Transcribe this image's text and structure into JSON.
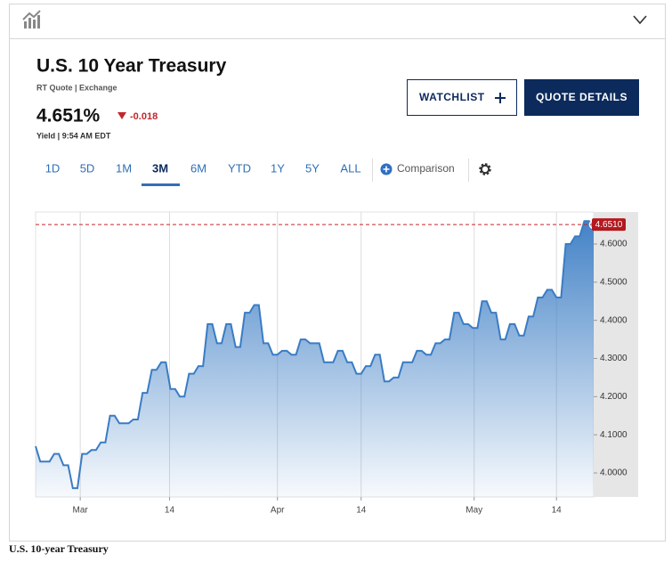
{
  "header": {
    "title": "U.S. 10 Year Treasury",
    "source": "RT Quote | Exchange",
    "price": "4.651%",
    "change": "-0.018",
    "meta": "Yield | 9:54 AM EDT"
  },
  "buttons": {
    "watchlist": "WATCHLIST",
    "quote_details": "QUOTE DETAILS"
  },
  "ranges": [
    "1D",
    "5D",
    "1M",
    "3M",
    "6M",
    "YTD",
    "1Y",
    "5Y",
    "ALL"
  ],
  "active_range": "3M",
  "comparison": "Comparison",
  "caption": "U.S. 10-year Treasury",
  "chart_data": {
    "type": "area-line",
    "series": [
      {
        "name": "U.S. 10 Year Treasury",
        "color": "#3a7cc4",
        "values": [
          4.07,
          4.03,
          4.03,
          4.03,
          4.05,
          4.05,
          4.02,
          4.02,
          3.96,
          3.96,
          4.05,
          4.05,
          4.06,
          4.06,
          4.08,
          4.08,
          4.15,
          4.15,
          4.13,
          4.13,
          4.13,
          4.14,
          4.14,
          4.21,
          4.21,
          4.27,
          4.27,
          4.29,
          4.29,
          4.22,
          4.22,
          4.2,
          4.2,
          4.26,
          4.26,
          4.28,
          4.28,
          4.39,
          4.39,
          4.34,
          4.34,
          4.39,
          4.39,
          4.33,
          4.33,
          4.42,
          4.42,
          4.44,
          4.44,
          4.34,
          4.34,
          4.31,
          4.31,
          4.32,
          4.32,
          4.31,
          4.31,
          4.35,
          4.35,
          4.34,
          4.34,
          4.34,
          4.29,
          4.29,
          4.29,
          4.32,
          4.32,
          4.29,
          4.29,
          4.26,
          4.26,
          4.28,
          4.28,
          4.31,
          4.31,
          4.24,
          4.24,
          4.25,
          4.25,
          4.29,
          4.29,
          4.29,
          4.32,
          4.32,
          4.31,
          4.31,
          4.34,
          4.34,
          4.35,
          4.35,
          4.42,
          4.42,
          4.39,
          4.39,
          4.38,
          4.38,
          4.45,
          4.45,
          4.42,
          4.42,
          4.35,
          4.35,
          4.39,
          4.39,
          4.36,
          4.36,
          4.41,
          4.41,
          4.46,
          4.46,
          4.48,
          4.48,
          4.46,
          4.46,
          4.6,
          4.6,
          4.62,
          4.62,
          4.66,
          4.66,
          4.651
        ]
      }
    ],
    "last": {
      "value": 4.651,
      "label": "4.6510"
    },
    "xlim": [
      0,
      120
    ],
    "xticks": [
      {
        "value": 9.6,
        "label": "Mar"
      },
      {
        "value": 28.8,
        "label": "14"
      },
      {
        "value": 52,
        "label": "Apr"
      },
      {
        "value": 70,
        "label": "14"
      },
      {
        "value": 94.3,
        "label": "May"
      },
      {
        "value": 112,
        "label": "14"
      }
    ],
    "ylim": [
      3.937,
      4.684
    ],
    "yticks": [
      {
        "value": 4.0,
        "label": "4.0000"
      },
      {
        "value": 4.1,
        "label": "4.1000"
      },
      {
        "value": 4.2,
        "label": "4.2000"
      },
      {
        "value": 4.3,
        "label": "4.3000"
      },
      {
        "value": 4.4,
        "label": "4.4000"
      },
      {
        "value": 4.5,
        "label": "4.5000"
      },
      {
        "value": 4.6,
        "label": "4.6000"
      }
    ],
    "grid": true
  }
}
